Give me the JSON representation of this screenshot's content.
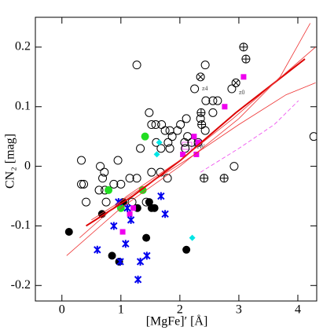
{
  "chart_data": {
    "type": "scatter",
    "xlabel": "[MgFe]′ [Å]",
    "ylabel": "CN₂ [mag]",
    "xlim": [
      -0.45,
      4.32
    ],
    "ylim": [
      -0.226,
      0.25
    ],
    "xticks": [
      0,
      1,
      2,
      3,
      4
    ],
    "yticks": [
      {
        "value": 0.2,
        "label": "0.2"
      },
      {
        "value": 0.1,
        "label": "0.1"
      },
      0,
      {
        "value": -0.1,
        "label": "-0.1"
      },
      {
        "value": -0.2,
        "label": "-0.2"
      }
    ],
    "annotations": [
      "z4",
      "z0",
      "MW"
    ],
    "series": [
      {
        "marker": "open-circle",
        "color": "#000000",
        "x": [
          1.27,
          1.48,
          1.59,
          2.43,
          2.25,
          2.44,
          2.88,
          2.56,
          2.64,
          2.56,
          1.52,
          1.69,
          1.87,
          1.75,
          1.83,
          1.96,
          2.01,
          2.11,
          1.33,
          1.6,
          1.68,
          1.8,
          2.09,
          1.83,
          2.2,
          2.08,
          2.31,
          2.43,
          2.13,
          2.35,
          0.33,
          0.65,
          0.72,
          0.69,
          0.95,
          0.37,
          0.33,
          0.41,
          0.63,
          0.73,
          0.75,
          0.88,
          1.0,
          1.15,
          1.27,
          1.52,
          1.67,
          1.79,
          2.92,
          4.27,
          1.19,
          1.43
        ],
        "values": [
          0.17,
          0.09,
          0.07,
          0.17,
          0.13,
          0.11,
          0.13,
          0.11,
          0.11,
          0.09,
          0.07,
          0.07,
          0.05,
          0.06,
          0.06,
          0.06,
          0.07,
          0.08,
          0.03,
          0.04,
          0.03,
          0.04,
          0.03,
          0.03,
          0.04,
          0.04,
          0.04,
          0.06,
          0.05,
          0.08,
          0.01,
          0.0,
          -0.01,
          -0.02,
          0.01,
          -0.03,
          -0.03,
          -0.06,
          -0.04,
          -0.04,
          -0.06,
          -0.03,
          -0.03,
          -0.02,
          -0.02,
          -0.01,
          -0.01,
          -0.02,
          0.0,
          0.05,
          -0.06,
          -0.06
        ]
      },
      {
        "marker": "circle-plus",
        "color": "#000000",
        "x": [
          3.08,
          3.12,
          2.36,
          2.37,
          2.41,
          2.75
        ],
        "values": [
          0.2,
          0.18,
          0.09,
          0.07,
          -0.02,
          -0.02
        ]
      },
      {
        "marker": "circle-cross",
        "color": "#000000",
        "x": [
          2.35,
          2.95
        ],
        "values": [
          0.15,
          0.14
        ]
      },
      {
        "marker": "filled-circle",
        "color": "#000000",
        "x": [
          0.12,
          0.68,
          0.85,
          0.97,
          1.04,
          1.43,
          1.48,
          1.52,
          2.11,
          1.57,
          1.28
        ],
        "values": [
          -0.11,
          -0.08,
          -0.15,
          -0.16,
          -0.06,
          -0.12,
          -0.06,
          -0.07,
          -0.14,
          -0.07,
          -0.07
        ]
      },
      {
        "marker": "filled-circle",
        "color": "#22dd22",
        "x": [
          1.41,
          0.79,
          1.37,
          1.0
        ],
        "values": [
          0.05,
          -0.04,
          -0.04,
          -0.07
        ]
      },
      {
        "marker": "diamond",
        "color": "#00e5e5",
        "x": [
          1.61,
          1.65,
          2.21
        ],
        "values": [
          0.02,
          0.04,
          -0.12
        ]
      },
      {
        "marker": "square",
        "color": "#ee00ee",
        "x": [
          3.08,
          2.76,
          2.24,
          2.31,
          2.05,
          2.28,
          1.21,
          1.03,
          1.15
        ],
        "values": [
          0.15,
          0.1,
          0.05,
          0.04,
          0.02,
          0.02,
          -0.07,
          -0.11,
          -0.08
        ]
      },
      {
        "marker": "star",
        "color": "#0000ee",
        "x": [
          0.6,
          0.96,
          0.88,
          1.11,
          1.17,
          0.99,
          1.08,
          1.29,
          1.33,
          1.44,
          1.75,
          1.68
        ],
        "values": [
          -0.14,
          -0.06,
          -0.1,
          -0.07,
          -0.09,
          -0.16,
          -0.13,
          -0.19,
          -0.16,
          -0.15,
          -0.08,
          -0.05
        ]
      },
      {
        "marker": "line",
        "color": "#dd0000",
        "width": 2,
        "x": [
          0.41,
          1.2,
          2.01,
          2.95,
          3.6,
          4.12
        ],
        "values": [
          -0.1,
          -0.05,
          0.01,
          0.09,
          0.14,
          0.18
        ]
      },
      {
        "marker": "line",
        "color": "#ee3333",
        "width": 0.8,
        "x": [
          0.08,
          1.0,
          2.0,
          3.0,
          3.7,
          4.21
        ],
        "values": [
          -0.15,
          -0.07,
          0.0,
          0.08,
          0.15,
          0.24
        ]
      },
      {
        "marker": "line",
        "color": "#ee3333",
        "width": 0.8,
        "x": [
          0.3,
          1.1,
          2.0,
          2.9,
          3.6,
          4.3
        ],
        "values": [
          -0.12,
          -0.05,
          0.01,
          0.08,
          0.14,
          0.2
        ]
      },
      {
        "marker": "line",
        "color": "#ee3333",
        "width": 0.8,
        "x": [
          0.5,
          1.3,
          2.1,
          3.0,
          3.8,
          4.3
        ],
        "values": [
          -0.09,
          -0.04,
          0.01,
          0.07,
          0.12,
          0.14
        ]
      },
      {
        "marker": "dashed-line",
        "color": "#ee44ee",
        "width": 0.8,
        "x": [
          2.35,
          3.0,
          3.6,
          4.01
        ],
        "values": [
          -0.01,
          0.03,
          0.07,
          0.11
        ]
      }
    ]
  }
}
